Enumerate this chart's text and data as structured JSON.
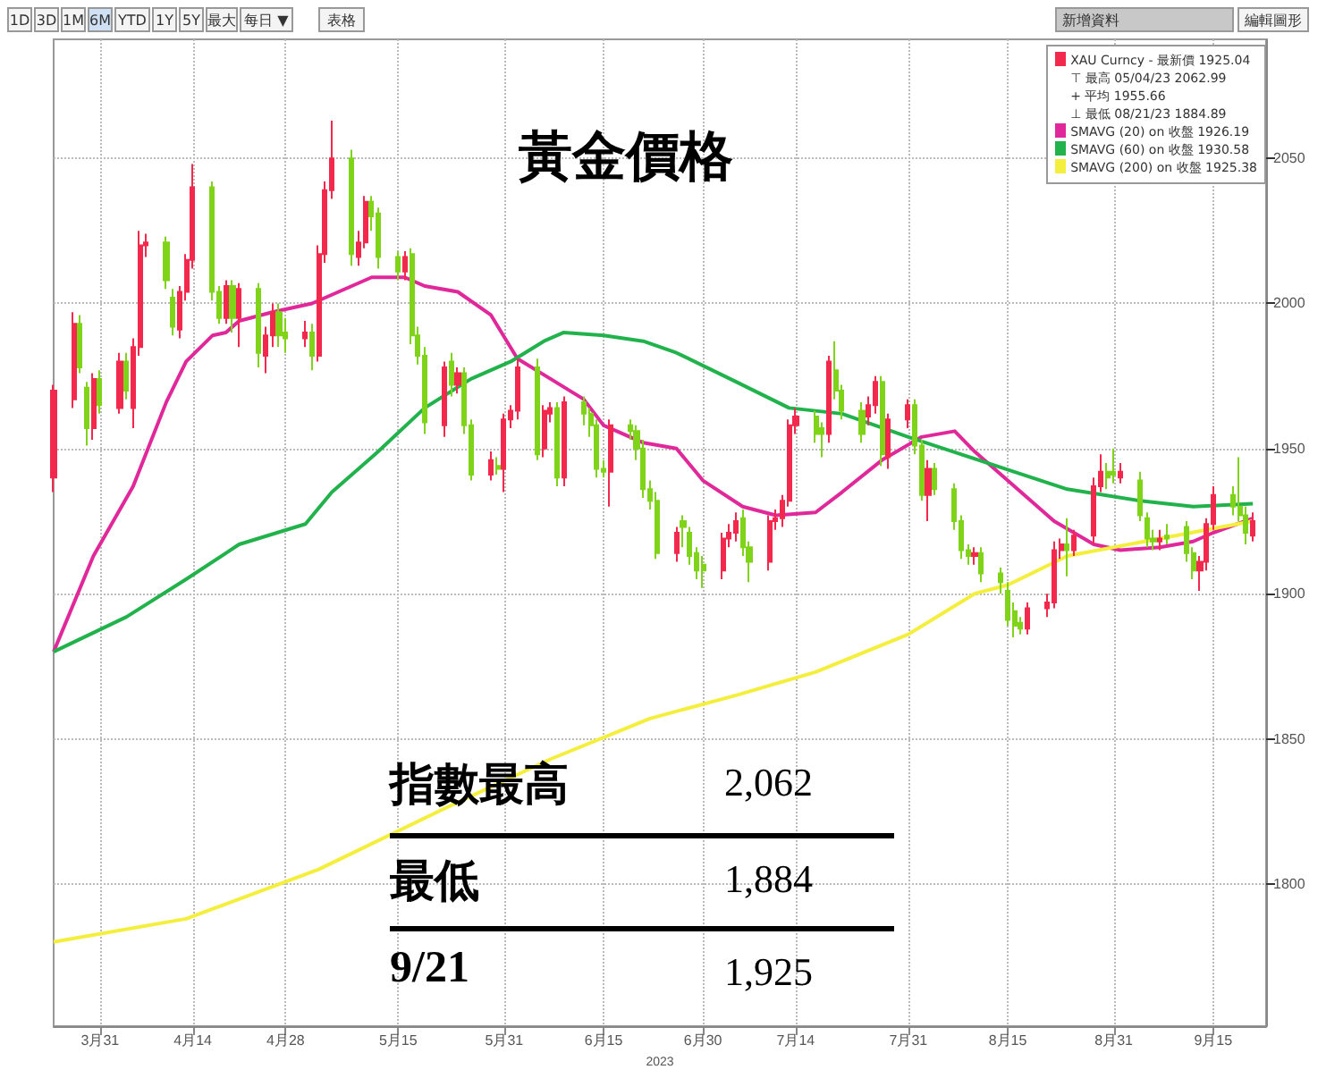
{
  "chart_data": {
    "type": "candlestick",
    "title": "黃金價格",
    "xlabel": "2023",
    "legend": "top right",
    "grid": true,
    "marker": "none",
    "xlim": [
      "2023-03-24",
      "2023-09-23"
    ],
    "ylim": [
      1751,
      2091
    ],
    "xticks": [
      {
        "value": "2023-03-31",
        "label": "3月31"
      },
      {
        "value": "2023-04-14",
        "label": "4月14"
      },
      {
        "value": "2023-04-28",
        "label": "4月28"
      },
      {
        "value": "2023-05-15",
        "label": "5月15"
      },
      {
        "value": "2023-05-31",
        "label": "5月31"
      },
      {
        "value": "2023-06-15",
        "label": "6月15"
      },
      {
        "value": "2023-06-30",
        "label": "6月30"
      },
      {
        "value": "2023-07-14",
        "label": "7月14"
      },
      {
        "value": "2023-07-31",
        "label": "7月31"
      },
      {
        "value": "2023-08-15",
        "label": "8月15"
      },
      {
        "value": "2023-08-31",
        "label": "8月31"
      },
      {
        "value": "2023-09-15",
        "label": "9月15"
      }
    ],
    "yticks": [
      1800,
      1850,
      1900,
      1950,
      2000,
      2050
    ],
    "annotations": [
      "1D",
      "3D",
      "1M",
      "6M",
      "YTD",
      "1Y",
      "5Y",
      "最大",
      "每日 ▼",
      "表格",
      "新增資料",
      "編輯圖形",
      "⊤ 最高 05/04/23 2062.99",
      "+ 平均 1955.66",
      "⊥ 最低 08/21/23 1884.89",
      "指數最高",
      "2,062",
      "最低",
      "1,884",
      "9/21",
      "1,925"
    ],
    "series": [
      {
        "name": "XAU Curncy - 最新價 1925.04",
        "type": "candlestick",
        "color": "#f2284c",
        "colors": [
          "#f2284c",
          "#f2284c",
          "#7fd319",
          "#7fd319",
          "#f2284c",
          "#7fd319",
          "#f2284c",
          "#7fd319",
          "#f2284c",
          "#f2284c",
          "#f2284c",
          "#7fd319",
          "#7fd319",
          "#f2284c",
          "#f2284c",
          "#f2284c",
          "#7fd319",
          "#7fd319",
          "#f2284c",
          "#7fd319",
          "#f2284c",
          "#7fd319",
          "#f2284c",
          "#f2284c",
          "#7fd319",
          "#7fd319",
          "#f2284c",
          "#7fd319",
          "#f2284c",
          "#f2284c",
          "#f2284c",
          "#7fd319",
          "#f2284c",
          "#f2284c",
          "#7fd319",
          "#7fd319",
          "#7fd319",
          "#f2284c",
          "#7fd319",
          "#7fd319",
          "#7fd319",
          "#f2284c",
          "#7fd319",
          "#f2284c",
          "#7fd319",
          "#7fd319",
          "#f2284c",
          "#7fd319",
          "#f2284c",
          "#f2284c",
          "#f2284c",
          "#7fd319",
          "#f2284c",
          "#f2284c",
          "#7fd319",
          "#f2284c",
          "#7fd319",
          "#7fd319",
          "#7fd319",
          "#7fd319",
          "#f2284c",
          "#7fd319",
          "#7fd319",
          "#7fd319",
          "#7fd319",
          "#7fd319",
          "#f2284c",
          "#7fd319",
          "#7fd319",
          "#7fd319",
          "#7fd319",
          "#f2284c",
          "#f2284c",
          "#f2284c",
          "#7fd319",
          "#7fd319",
          "#f2284c",
          "#f2284c",
          "#f2284c",
          "#f2284c",
          "#f2284c",
          "#7fd319",
          "#7fd319",
          "#f2284c",
          "#7fd319",
          "#7fd319",
          "#7fd319",
          "#f2284c",
          "#f2284c",
          "#7fd319",
          "#f2284c",
          "#f2284c",
          "#7fd319",
          "#7fd319",
          "#f2284c",
          "#7fd319",
          "#7fd319",
          "#7fd319",
          "#7fd319",
          "#f2284c",
          "#7fd319",
          "#7fd319",
          "#7fd319",
          "#7fd319",
          "#7fd319",
          "#f2284c",
          "#f2284c",
          "#f2284c",
          "#f2284c",
          "#7fd319",
          "#f2284c",
          "#f2284c",
          "#f2284c",
          "#7fd319",
          "#7fd319",
          "#f2284c",
          "#7fd319",
          "#7fd319",
          "#7fd319",
          "#f2284c",
          "#7fd319",
          "#7fd319",
          "#7fd319",
          "#f2284c",
          "#f2284c",
          "#f2284c",
          "#7fd319",
          "#7fd319",
          "#7fd319",
          "#f2284c"
        ],
        "x": [
          "2023-03-24",
          "2023-03-27",
          "2023-03-28",
          "2023-03-29",
          "2023-03-30",
          "2023-03-31",
          "2023-04-03",
          "2023-04-04",
          "2023-04-05",
          "2023-04-06",
          "2023-04-07",
          "2023-04-10",
          "2023-04-11",
          "2023-04-12",
          "2023-04-13",
          "2023-04-14",
          "2023-04-17",
          "2023-04-18",
          "2023-04-19",
          "2023-04-20",
          "2023-04-21",
          "2023-04-24",
          "2023-04-25",
          "2023-04-26",
          "2023-04-27",
          "2023-04-28",
          "2023-05-01",
          "2023-05-02",
          "2023-05-03",
          "2023-05-04",
          "2023-05-05",
          "2023-05-08",
          "2023-05-09",
          "2023-05-10",
          "2023-05-11",
          "2023-05-12",
          "2023-05-15",
          "2023-05-16",
          "2023-05-17",
          "2023-05-18",
          "2023-05-19",
          "2023-05-22",
          "2023-05-23",
          "2023-05-24",
          "2023-05-25",
          "2023-05-26",
          "2023-05-29",
          "2023-05-30",
          "2023-05-31",
          "2023-06-01",
          "2023-06-02",
          "2023-06-05",
          "2023-06-06",
          "2023-06-07",
          "2023-06-08",
          "2023-06-09",
          "2023-06-12",
          "2023-06-13",
          "2023-06-14",
          "2023-06-15",
          "2023-06-16",
          "2023-06-19",
          "2023-06-20",
          "2023-06-21",
          "2023-06-22",
          "2023-06-23",
          "2023-06-26",
          "2023-06-27",
          "2023-06-28",
          "2023-06-29",
          "2023-06-30",
          "2023-07-03",
          "2023-07-04",
          "2023-07-05",
          "2023-07-06",
          "2023-07-07",
          "2023-07-10",
          "2023-07-11",
          "2023-07-12",
          "2023-07-13",
          "2023-07-14",
          "2023-07-17",
          "2023-07-18",
          "2023-07-19",
          "2023-07-20",
          "2023-07-21",
          "2023-07-24",
          "2023-07-25",
          "2023-07-26",
          "2023-07-27",
          "2023-07-28",
          "2023-07-31",
          "2023-08-01",
          "2023-08-02",
          "2023-08-03",
          "2023-08-04",
          "2023-08-07",
          "2023-08-08",
          "2023-08-09",
          "2023-08-10",
          "2023-08-11",
          "2023-08-14",
          "2023-08-15",
          "2023-08-16",
          "2023-08-17",
          "2023-08-18",
          "2023-08-21",
          "2023-08-22",
          "2023-08-23",
          "2023-08-24",
          "2023-08-25",
          "2023-08-28",
          "2023-08-29",
          "2023-08-30",
          "2023-08-31",
          "2023-09-01",
          "2023-09-04",
          "2023-09-05",
          "2023-09-06",
          "2023-09-07",
          "2023-09-08",
          "2023-09-11",
          "2023-09-12",
          "2023-09-13",
          "2023-09-14",
          "2023-09-15",
          "2023-09-18",
          "2023-09-19",
          "2023-09-20",
          "2023-09-21"
        ],
        "ohlc": [
          [
            1940,
            1972,
            1935,
            1970
          ],
          [
            1967,
            1997,
            1964,
            1993
          ],
          [
            1993,
            1996,
            1976,
            1978
          ],
          [
            1971,
            1973,
            1951,
            1957
          ],
          [
            1957,
            1976,
            1953,
            1974
          ],
          [
            1974,
            1977,
            1962,
            1965
          ],
          [
            1964,
            1983,
            1962,
            1980
          ],
          [
            1980,
            1983,
            1967,
            1970
          ],
          [
            1964,
            1988,
            1957,
            1985
          ],
          [
            1985,
            2025,
            1982,
            2020
          ],
          [
            2020,
            2024,
            2016,
            2021
          ],
          [
            2021,
            2023,
            2005,
            2008
          ],
          [
            2002,
            2005,
            1989,
            1992
          ],
          [
            1991,
            2006,
            1988,
            2004
          ],
          [
            2004,
            2017,
            2001,
            2015
          ],
          [
            2015,
            2048,
            2012,
            2040
          ],
          [
            2040,
            2042,
            2001,
            2004
          ],
          [
            2004,
            2006,
            1993,
            1995
          ],
          [
            1995,
            2008,
            1993,
            2006
          ],
          [
            2006,
            2008,
            1990,
            1995
          ],
          [
            1995,
            2007,
            1985,
            2005
          ],
          [
            2005,
            2007,
            1978,
            1983
          ],
          [
            1982,
            1992,
            1976,
            1989
          ],
          [
            1989,
            2000,
            1985,
            1997
          ],
          [
            1997,
            2000,
            1985,
            1989
          ],
          [
            1990,
            1995,
            1983,
            1988
          ],
          [
            1988,
            1994,
            1985,
            1990
          ],
          [
            1990,
            1993,
            1977,
            1982
          ],
          [
            1982,
            2020,
            1980,
            2017
          ],
          [
            2017,
            2042,
            2014,
            2039
          ],
          [
            2039,
            2063,
            2036,
            2050
          ],
          [
            2050,
            2053,
            2013,
            2017
          ],
          [
            2016,
            2025,
            2013,
            2021
          ],
          [
            2021,
            2037,
            2019,
            2035
          ],
          [
            2035,
            2037,
            2025,
            2030
          ],
          [
            2031,
            2033,
            2012,
            2016
          ],
          [
            2016,
            2018,
            2008,
            2011
          ],
          [
            2011,
            2018,
            2008,
            2016
          ],
          [
            2017,
            2019,
            1986,
            1989
          ],
          [
            1989,
            1992,
            1979,
            1982
          ],
          [
            1982,
            1985,
            1955,
            1959
          ],
          [
            1958,
            1980,
            1954,
            1978
          ],
          [
            1980,
            1983,
            1968,
            1972
          ],
          [
            1972,
            1978,
            1969,
            1976
          ],
          [
            1976,
            1978,
            1955,
            1958
          ],
          [
            1958,
            1960,
            1939,
            1941
          ],
          [
            1941,
            1949,
            1939,
            1946
          ],
          [
            1944,
            1947,
            1941,
            1943
          ],
          [
            1943,
            1962,
            1935,
            1960
          ],
          [
            1960,
            1965,
            1957,
            1963
          ],
          [
            1963,
            1981,
            1960,
            1978
          ],
          [
            1978,
            1981,
            1946,
            1948
          ],
          [
            1950,
            1965,
            1947,
            1963
          ],
          [
            1962,
            1966,
            1959,
            1964
          ],
          [
            1964,
            1966,
            1937,
            1940
          ],
          [
            1940,
            1968,
            1937,
            1966
          ],
          [
            1966,
            1968,
            1958,
            1962
          ],
          [
            1962,
            1964,
            1954,
            1958
          ],
          [
            1958,
            1960,
            1940,
            1943
          ],
          [
            1943,
            1946,
            1940,
            1942
          ],
          [
            1942,
            1960,
            1930,
            1958
          ],
          [
            1958,
            1960,
            1953,
            1956
          ],
          [
            1956,
            1958,
            1946,
            1950
          ],
          [
            1950,
            1953,
            1933,
            1936
          ],
          [
            1936,
            1939,
            1929,
            1932
          ],
          [
            1932,
            1935,
            1912,
            1914
          ],
          [
            1914,
            1923,
            1911,
            1921
          ],
          [
            1925,
            1927,
            1916,
            1923
          ],
          [
            1921,
            1923,
            1910,
            1913
          ],
          [
            1914,
            1916,
            1905,
            1908
          ],
          [
            1910,
            1913,
            1902,
            1908
          ],
          [
            1908,
            1921,
            1905,
            1919
          ],
          [
            1919,
            1924,
            1916,
            1921
          ],
          [
            1921,
            1928,
            1918,
            1925
          ],
          [
            1926,
            1929,
            1913,
            1916
          ],
          [
            1916,
            1918,
            1904,
            1911
          ],
          [
            1911,
            1927,
            1908,
            1925
          ],
          [
            1925,
            1929,
            1922,
            1926
          ],
          [
            1926,
            1934,
            1923,
            1932
          ],
          [
            1932,
            1960,
            1930,
            1958
          ],
          [
            1958,
            1964,
            1955,
            1961
          ],
          [
            1961,
            1963,
            1952,
            1955
          ],
          [
            1957,
            1959,
            1947,
            1955
          ],
          [
            1955,
            1982,
            1952,
            1980
          ],
          [
            1977,
            1987,
            1967,
            1970
          ],
          [
            1970,
            1972,
            1960,
            1963
          ],
          [
            1963,
            1966,
            1952,
            1955
          ],
          [
            1961,
            1968,
            1958,
            1965
          ],
          [
            1965,
            1975,
            1962,
            1973
          ],
          [
            1973,
            1975,
            1944,
            1948
          ],
          [
            1947,
            1962,
            1943,
            1960
          ],
          [
            1960,
            1967,
            1957,
            1965
          ],
          [
            1965,
            1967,
            1948,
            1951
          ],
          [
            1951,
            1953,
            1932,
            1934
          ],
          [
            1934,
            1946,
            1925,
            1943
          ],
          [
            1943,
            1945,
            1934,
            1936
          ],
          [
            1936,
            1938,
            1922,
            1925
          ],
          [
            1925,
            1927,
            1912,
            1915
          ],
          [
            1915,
            1917,
            1910,
            1913
          ],
          [
            1913,
            1916,
            1910,
            1914
          ],
          [
            1914,
            1916,
            1904,
            1907
          ],
          [
            1907,
            1909,
            1900,
            1904
          ],
          [
            1901,
            1904,
            1889,
            1891
          ],
          [
            1894,
            1897,
            1885,
            1889
          ],
          [
            1890,
            1892,
            1886,
            1888
          ],
          [
            1888,
            1897,
            1886,
            1895
          ],
          [
            1895,
            1900,
            1892,
            1897
          ],
          [
            1897,
            1918,
            1895,
            1915
          ],
          [
            1915,
            1919,
            1912,
            1917
          ],
          [
            1917,
            1926,
            1906,
            1915
          ],
          [
            1915,
            1922,
            1913,
            1920
          ],
          [
            1920,
            1940,
            1917,
            1937
          ],
          [
            1937,
            1948,
            1935,
            1942
          ],
          [
            1942,
            1945,
            1936,
            1940
          ],
          [
            1942,
            1950,
            1938,
            1941
          ],
          [
            1940,
            1945,
            1938,
            1942
          ],
          [
            1939,
            1942,
            1925,
            1927
          ],
          [
            1926,
            1928,
            1916,
            1919
          ],
          [
            1919,
            1922,
            1915,
            1918
          ],
          [
            1918,
            1922,
            1915,
            1919
          ],
          [
            1920,
            1924,
            1917,
            1919
          ],
          [
            1923,
            1925,
            1911,
            1914
          ],
          [
            1914,
            1916,
            1905,
            1908
          ],
          [
            1908,
            1913,
            1901,
            1911
          ],
          [
            1911,
            1926,
            1908,
            1924
          ],
          [
            1924,
            1937,
            1922,
            1934
          ],
          [
            1934,
            1937,
            1927,
            1930
          ],
          [
            1930,
            1947,
            1925,
            1927
          ],
          [
            1927,
            1930,
            1917,
            1921
          ],
          [
            1920,
            1928,
            1918,
            1925
          ]
        ]
      },
      {
        "name": "SMAVG (20) on 收盤 1926.19",
        "type": "line",
        "color": "#e0289a",
        "x": [
          "2023-03-24",
          "2023-03-30",
          "2023-04-05",
          "2023-04-10",
          "2023-04-13",
          "2023-04-17",
          "2023-04-19",
          "2023-04-21",
          "2023-04-26",
          "2023-05-02",
          "2023-05-08",
          "2023-05-11",
          "2023-05-16",
          "2023-05-19",
          "2023-05-24",
          "2023-05-29",
          "2023-06-02",
          "2023-06-07",
          "2023-06-12",
          "2023-06-15",
          "2023-06-21",
          "2023-06-26",
          "2023-06-30",
          "2023-07-06",
          "2023-07-11",
          "2023-07-17",
          "2023-07-21",
          "2023-07-27",
          "2023-08-02",
          "2023-08-07",
          "2023-08-10",
          "2023-08-16",
          "2023-08-22",
          "2023-08-28",
          "2023-09-01",
          "2023-09-07",
          "2023-09-12",
          "2023-09-15",
          "2023-09-21"
        ],
        "values": [
          1880,
          1913,
          1937,
          1966,
          1980,
          1989,
          1990,
          1994,
          1997,
          2000,
          2006,
          2009,
          2009,
          2006,
          2004,
          1996,
          1981,
          1974,
          1967,
          1958,
          1952,
          1950,
          1939,
          1930,
          1927,
          1928,
          1935,
          1946,
          1954,
          1956,
          1949,
          1937,
          1925,
          1917,
          1915,
          1916,
          1918,
          1921,
          1926
        ]
      },
      {
        "name": "SMAVG (60) on 收盤 1930.58",
        "type": "line",
        "color": "#22b24c",
        "x": [
          "2023-03-24",
          "2023-04-04",
          "2023-04-13",
          "2023-04-21",
          "2023-05-01",
          "2023-05-05",
          "2023-05-12",
          "2023-05-19",
          "2023-05-26",
          "2023-06-01",
          "2023-06-06",
          "2023-06-09",
          "2023-06-15",
          "2023-06-21",
          "2023-06-26",
          "2023-07-05",
          "2023-07-13",
          "2023-07-21",
          "2023-07-31",
          "2023-08-08",
          "2023-08-16",
          "2023-08-24",
          "2023-09-04",
          "2023-09-12",
          "2023-09-21"
        ],
        "values": [
          1880,
          1892,
          1905,
          1917,
          1924,
          1935,
          1949,
          1964,
          1974,
          1980,
          1987,
          1990,
          1989,
          1987,
          1983,
          1973,
          1964,
          1962,
          1954,
          1948,
          1942,
          1936,
          1932,
          1930,
          1931
        ]
      },
      {
        "name": "SMAVG (200) on 收盤 1925.38",
        "type": "line",
        "color": "#f4ee3c",
        "x": [
          "2023-03-24",
          "2023-04-13",
          "2023-05-03",
          "2023-05-22",
          "2023-06-07",
          "2023-06-22",
          "2023-07-05",
          "2023-07-17",
          "2023-07-31",
          "2023-08-10",
          "2023-08-15",
          "2023-08-24",
          "2023-09-07",
          "2023-09-21"
        ],
        "values": [
          1780,
          1788,
          1805,
          1826,
          1843,
          1857,
          1865,
          1873,
          1886,
          1900,
          1903,
          1913,
          1919,
          1925
        ]
      }
    ]
  }
}
